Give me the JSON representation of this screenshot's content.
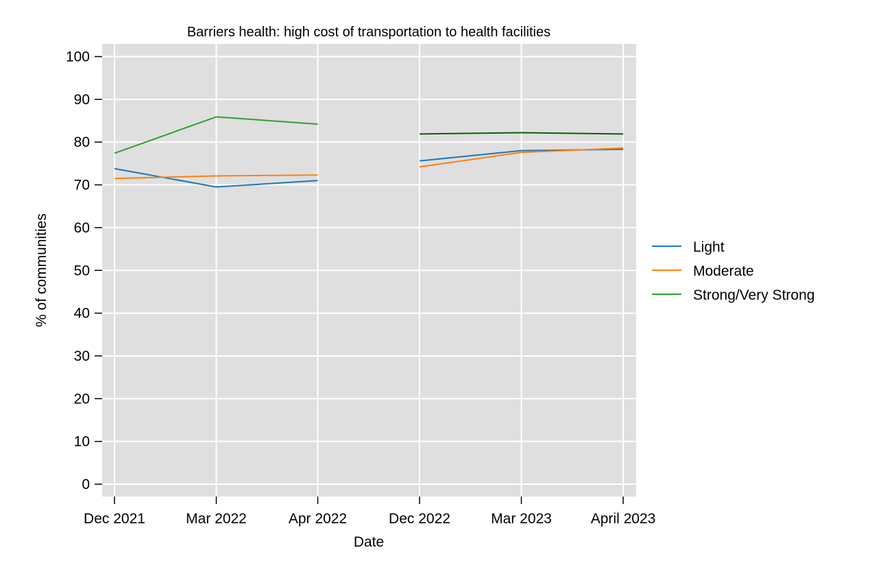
{
  "chart_data": {
    "type": "line",
    "title": "Barriers health: high cost of transportation to health facilities",
    "xlabel": "Date",
    "ylabel": "% of communities",
    "categories": [
      "Dec 2021",
      "Mar 2022",
      "Apr 2022",
      "Dec 2022",
      "Mar 2023",
      "April 2023"
    ],
    "ylim": [
      0,
      100
    ],
    "yticks": [
      0,
      10,
      20,
      30,
      40,
      50,
      60,
      70,
      80,
      90,
      100
    ],
    "grid": true,
    "legend_position": "right",
    "series": [
      {
        "name": "Light",
        "color": "#1f77b4",
        "segments": [
          {
            "x": [
              "Dec 2021",
              "Mar 2022",
              "Apr 2022"
            ],
            "values": [
              73.8,
              69.5,
              71.0
            ]
          },
          {
            "x": [
              "Dec 2022",
              "Mar 2023",
              "April 2023"
            ],
            "values": [
              75.6,
              78.0,
              78.3
            ]
          }
        ]
      },
      {
        "name": "Moderate",
        "color": "#ff7f0e",
        "segments": [
          {
            "x": [
              "Dec 2021",
              "Mar 2022",
              "Apr 2022"
            ],
            "values": [
              71.5,
              72.1,
              72.3
            ]
          },
          {
            "x": [
              "Dec 2022",
              "Mar 2023",
              "April 2023"
            ],
            "values": [
              74.2,
              77.6,
              78.6
            ]
          }
        ]
      },
      {
        "name": "Strong/Very Strong",
        "color": "#2ca02c",
        "segments": [
          {
            "x": [
              "Dec 2021",
              "Mar 2022",
              "Apr 2022"
            ],
            "values": [
              77.4,
              85.9,
              84.2
            ]
          },
          {
            "x": [
              "Dec 2022",
              "Mar 2023",
              "April 2023"
            ],
            "values": [
              81.9,
              82.2,
              81.9
            ],
            "color": "#006400"
          }
        ]
      }
    ],
    "colors": {
      "plot_background": "#dfdfdf",
      "grid": "#ffffff"
    }
  }
}
